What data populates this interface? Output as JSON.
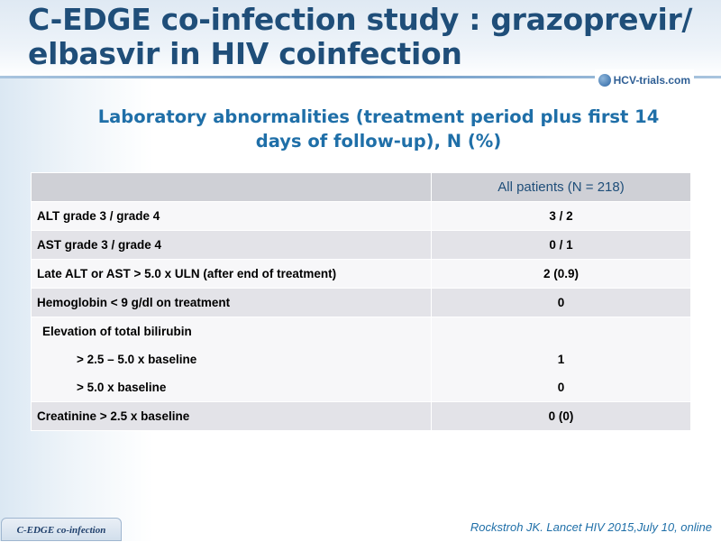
{
  "slide": {
    "title": "C-EDGE co-infection study : grazoprevir/ elbasvir in HIV coinfection",
    "subtitle": "Laboratory abnormalities (treatment period plus first 14 days of follow-up), N (%)",
    "logo_text": "HCV-trials.com",
    "footer_tab": "C-EDGE co-infection",
    "citation": "Rockstroh JK. Lancet HIV 2015,July 10, online"
  },
  "table": {
    "header_blank": "",
    "header_col": "All patients (N = 218)",
    "rows": [
      {
        "label": "ALT grade 3 / grade 4",
        "value": "3 / 2"
      },
      {
        "label": "AST grade 3 / grade 4",
        "value": "0 / 1"
      },
      {
        "label": "Late ALT or AST > 5.0 x ULN (after end of treatment)",
        "value": "2 (0.9)"
      },
      {
        "label": "Hemoglobin < 9 g/dl on treatment",
        "value": "0"
      }
    ],
    "bilirubin": {
      "label": "Elevation of total bilirubin",
      "sub": [
        {
          "label": "> 2.5 – 5.0 x baseline",
          "value": "1"
        },
        {
          "label": "> 5.0 x baseline",
          "value": "0"
        }
      ]
    },
    "creatinine": {
      "label": "Creatinine > 2.5 x baseline",
      "value": "0 (0)"
    }
  },
  "colors": {
    "title": "#1f4e79",
    "subtitle": "#1f6fa8",
    "row_light": "#f7f7f9",
    "row_dark": "#e3e3e8",
    "header_bg": "#cfd0d6"
  }
}
